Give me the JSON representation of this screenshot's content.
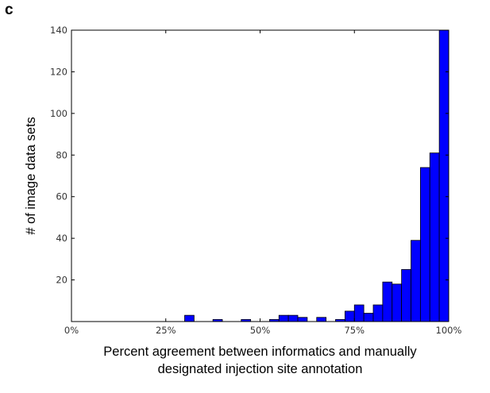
{
  "panel_label": "c",
  "chart_data": {
    "type": "bar",
    "title": "",
    "xlabel_lines": [
      "Percent agreement between informatics and manually",
      "designated injection site annotation"
    ],
    "ylabel": "# of image data sets",
    "xlim": [
      0,
      100
    ],
    "ylim": [
      0,
      140
    ],
    "x_ticks": [
      0,
      25,
      50,
      75,
      100
    ],
    "x_tick_labels": [
      "0%",
      "25%",
      "50%",
      "75%",
      "100%"
    ],
    "y_ticks": [
      20,
      40,
      60,
      80,
      100,
      120,
      140
    ],
    "y_tick_labels": [
      "20",
      "40",
      "60",
      "80",
      "100",
      "120",
      "140"
    ],
    "bar_color": "#0000ff",
    "bin_width": 2.5,
    "bins": [
      {
        "x": 32.5,
        "value": 3
      },
      {
        "x": 40,
        "value": 1
      },
      {
        "x": 47.5,
        "value": 1
      },
      {
        "x": 55,
        "value": 1
      },
      {
        "x": 57.5,
        "value": 3
      },
      {
        "x": 60,
        "value": 3
      },
      {
        "x": 62.5,
        "value": 2
      },
      {
        "x": 67.5,
        "value": 2
      },
      {
        "x": 72.5,
        "value": 1
      },
      {
        "x": 75,
        "value": 5
      },
      {
        "x": 77.5,
        "value": 8
      },
      {
        "x": 80,
        "value": 4
      },
      {
        "x": 82.5,
        "value": 8
      },
      {
        "x": 85,
        "value": 19
      },
      {
        "x": 87.5,
        "value": 18
      },
      {
        "x": 90,
        "value": 25
      },
      {
        "x": 92.5,
        "value": 39
      },
      {
        "x": 95,
        "value": 74
      },
      {
        "x": 97.5,
        "value": 81
      },
      {
        "x": 100,
        "value": 140
      }
    ]
  }
}
